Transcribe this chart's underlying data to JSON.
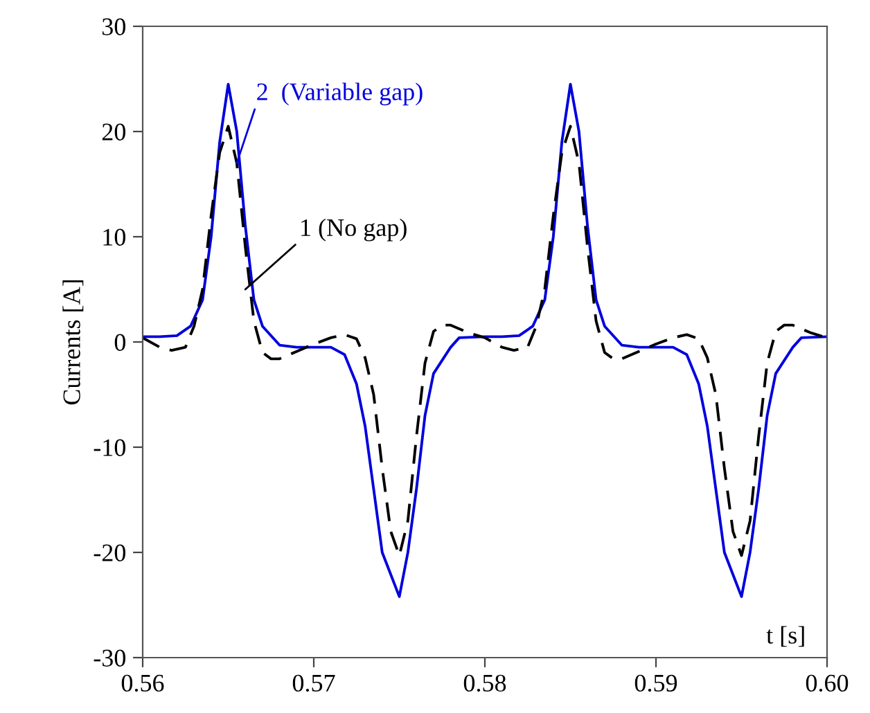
{
  "chart_data": {
    "type": "line",
    "xlabel": "t [s]",
    "ylabel": "Currents [A]",
    "xlim": [
      0.56,
      0.6
    ],
    "xticks": [
      {
        "value": 0.56,
        "label": "0.56"
      },
      {
        "value": 0.57,
        "label": "0.57"
      },
      {
        "value": 0.58,
        "label": "0.58"
      },
      {
        "value": 0.59,
        "label": "0.59"
      },
      {
        "value": 0.6,
        "label": "0.60"
      }
    ],
    "ylim": [
      -30,
      30
    ],
    "yticks": [
      -30,
      -20,
      -10,
      0,
      10,
      20,
      30
    ],
    "grid": false,
    "legend": false,
    "marker": "none",
    "series": [
      {
        "name": "2  (Variable gap)",
        "color": "#0000dd",
        "line_style": "solid",
        "x": [
          0.56,
          0.561,
          0.562,
          0.5628,
          0.5635,
          0.564,
          0.5645,
          0.565,
          0.5655,
          0.566,
          0.5665,
          0.567,
          0.568,
          0.569,
          0.57,
          0.571,
          0.5718,
          0.5725,
          0.573,
          0.5735,
          0.574,
          0.575,
          0.5755,
          0.576,
          0.5765,
          0.577,
          0.578,
          0.5785,
          0.58,
          0.581,
          0.582,
          0.5828,
          0.5835,
          0.584,
          0.5845,
          0.585,
          0.5855,
          0.586,
          0.5865,
          0.587,
          0.588,
          0.589,
          0.59,
          0.591,
          0.5918,
          0.5925,
          0.593,
          0.5935,
          0.594,
          0.595,
          0.5955,
          0.596,
          0.5965,
          0.597,
          0.598,
          0.5985,
          0.6
        ],
        "values": [
          0.5,
          0.5,
          0.6,
          1.5,
          4,
          10,
          19,
          24.5,
          20,
          11,
          4,
          1.5,
          -0.3,
          -0.5,
          -0.5,
          -0.5,
          -1.2,
          -4,
          -8,
          -14,
          -20,
          -24.2,
          -20,
          -14,
          -7,
          -3,
          -0.5,
          0.4,
          0.5,
          0.5,
          0.6,
          1.5,
          4,
          10,
          19,
          24.5,
          20,
          11,
          4,
          1.5,
          -0.3,
          -0.5,
          -0.5,
          -0.5,
          -1.2,
          -4,
          -8,
          -14,
          -20,
          -24.2,
          -20,
          -14,
          -7,
          -3,
          -0.5,
          0.4,
          0.5
        ]
      },
      {
        "name": "1 (No gap)",
        "color": "#000000",
        "line_style": "dashed",
        "x": [
          0.56,
          0.561,
          0.5617,
          0.5625,
          0.563,
          0.5635,
          0.564,
          0.5645,
          0.565,
          0.5655,
          0.566,
          0.5665,
          0.567,
          0.5675,
          0.568,
          0.569,
          0.57,
          0.571,
          0.5718,
          0.5725,
          0.573,
          0.5735,
          0.574,
          0.5745,
          0.575,
          0.5755,
          0.576,
          0.5765,
          0.577,
          0.5775,
          0.578,
          0.579,
          0.58,
          0.581,
          0.5817,
          0.5825,
          0.583,
          0.5835,
          0.584,
          0.5845,
          0.585,
          0.5855,
          0.586,
          0.5865,
          0.587,
          0.5875,
          0.588,
          0.589,
          0.59,
          0.591,
          0.5918,
          0.5925,
          0.593,
          0.5935,
          0.594,
          0.5945,
          0.595,
          0.5955,
          0.596,
          0.5965,
          0.597,
          0.5975,
          0.598,
          0.599,
          0.6
        ],
        "values": [
          0.4,
          -0.5,
          -0.8,
          -0.5,
          1.5,
          5,
          12,
          18,
          20.5,
          17,
          9,
          2,
          -1,
          -1.6,
          -1.6,
          -0.9,
          -0.2,
          0.4,
          0.7,
          0.3,
          -1.5,
          -5,
          -12,
          -18,
          -20.3,
          -17,
          -9,
          -2,
          1,
          1.6,
          1.6,
          0.9,
          0.4,
          -0.5,
          -0.8,
          -0.5,
          1.5,
          5,
          12,
          18,
          20.5,
          17,
          9,
          2,
          -1,
          -1.6,
          -1.6,
          -0.9,
          -0.2,
          0.4,
          0.7,
          0.3,
          -1.5,
          -5,
          -12,
          -18,
          -20.3,
          -17,
          -9,
          -2,
          1,
          1.6,
          1.6,
          0.9,
          0.4
        ]
      }
    ]
  }
}
